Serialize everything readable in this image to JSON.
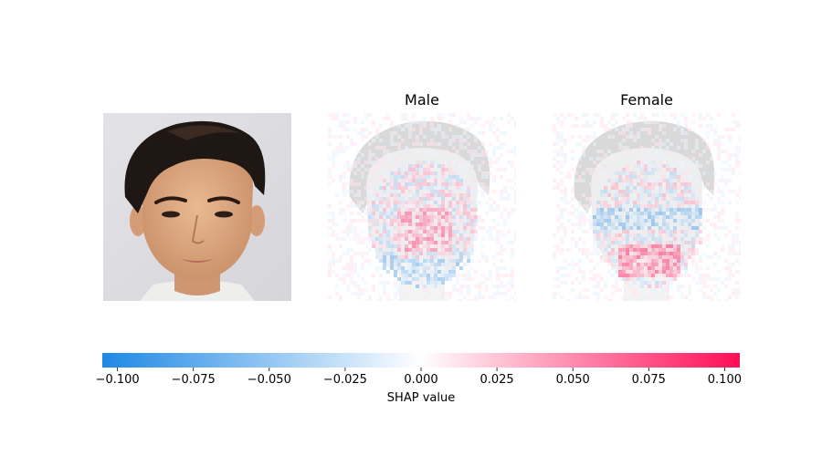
{
  "chart_data": {
    "type": "heatmap",
    "description_panels": [
      "input image",
      "Male",
      "Female"
    ],
    "panels": [
      {
        "title": "",
        "kind": "input-photo"
      },
      {
        "title": "Male",
        "kind": "shap-map"
      },
      {
        "title": "Female",
        "kind": "shap-map"
      }
    ],
    "colorbar": {
      "label": "SHAP value",
      "range": [
        -0.105,
        0.105
      ],
      "ticks": [
        -0.1,
        -0.075,
        -0.05,
        -0.025,
        0.0,
        0.025,
        0.05,
        0.075,
        0.1
      ],
      "tick_labels": [
        "−0.100",
        "−0.075",
        "−0.050",
        "−0.025",
        "0.000",
        "0.025",
        "0.050",
        "0.075",
        "0.100"
      ],
      "negative_color": "#1e88e5",
      "zero_color": "#ffffff",
      "positive_color": "#ff0d57"
    }
  }
}
